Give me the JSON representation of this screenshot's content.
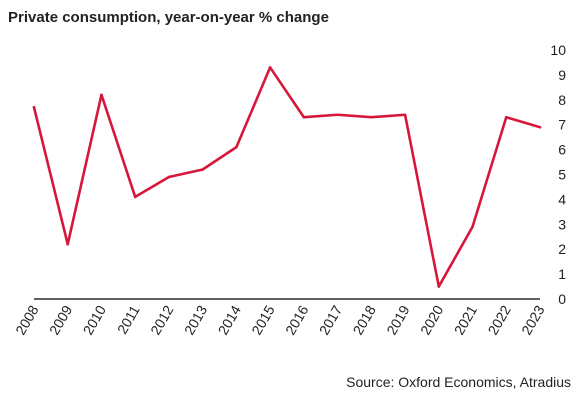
{
  "chart_data": {
    "type": "line",
    "title": "Private consumption, year-on-year % change",
    "source": "Source: Oxford Economics, Atradius",
    "x": [
      "2008",
      "2009",
      "2010",
      "2011",
      "2012",
      "2013",
      "2014",
      "2015",
      "2016",
      "2017",
      "2018",
      "2019",
      "2020",
      "2021",
      "2022",
      "2023"
    ],
    "series": [
      {
        "values": [
          7.7,
          2.2,
          8.2,
          4.1,
          4.9,
          5.2,
          6.1,
          9.3,
          7.3,
          7.4,
          7.3,
          7.4,
          0.5,
          2.9,
          7.3,
          6.9
        ]
      }
    ],
    "ylim": [
      0,
      10
    ],
    "yticks": [
      0,
      1,
      2,
      3,
      4,
      5,
      6,
      7,
      8,
      9,
      10
    ],
    "y_axis_side": "right",
    "grid": false,
    "legend": "none",
    "line_color": "#d7173a",
    "axis_color": "#000000"
  }
}
